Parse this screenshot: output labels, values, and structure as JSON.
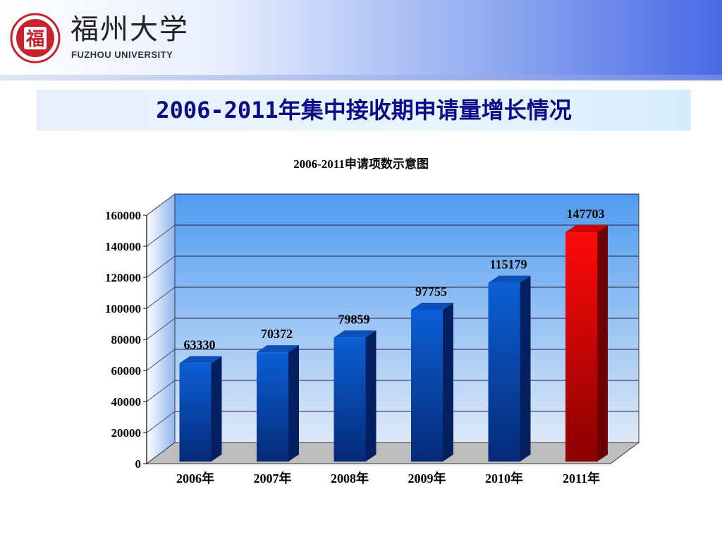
{
  "header": {
    "logo_cn": "福州大学",
    "logo_en": "FUZHOU UNIVERSITY",
    "seal_glyph": "福"
  },
  "slide": {
    "title": "2006-2011年集中接收期申请量增长情况"
  },
  "colors": {
    "bar_blue": "#0a56c8",
    "bar_red": "#e30000",
    "wall_top": "#4e9bf0",
    "wall_bottom": "#dfe9f8"
  },
  "chart_data": {
    "type": "bar",
    "title": "2006-2011申请项数示意图",
    "categories": [
      "2006年",
      "2007年",
      "2008年",
      "2009年",
      "2010年",
      "2011年"
    ],
    "values": [
      63330,
      70372,
      79859,
      97755,
      115179,
      147703
    ],
    "data_labels": [
      "63330",
      "70372",
      "79859",
      "97755",
      "115179",
      "147703"
    ],
    "highlight_index": 5,
    "ylim": [
      0,
      160000
    ],
    "yticks": [
      0,
      20000,
      40000,
      60000,
      80000,
      100000,
      120000,
      140000,
      160000
    ],
    "ytick_labels": [
      "0",
      "20000",
      "40000",
      "60000",
      "80000",
      "100000",
      "120000",
      "140000",
      "160000"
    ],
    "grid": true,
    "style": "3d"
  }
}
